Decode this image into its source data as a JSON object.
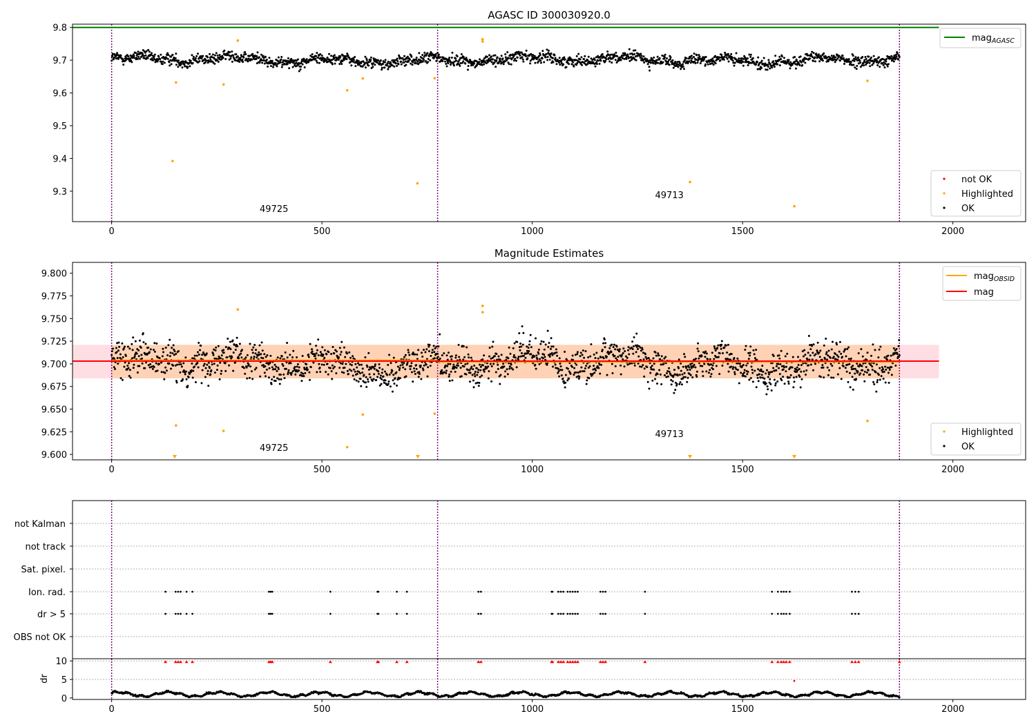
{
  "chart_data": [
    {
      "type": "scatter",
      "title": "AGASC ID 300030920.0",
      "xlim": [
        -93,
        2173
      ],
      "ylim": [
        9.207,
        9.81
      ],
      "xticks": [
        0,
        500,
        1000,
        1500,
        2000
      ],
      "yticks": [
        9.3,
        9.4,
        9.5,
        9.6,
        9.7,
        9.8
      ],
      "vlines": [
        0,
        775,
        1873
      ],
      "mag_agasc": 9.8,
      "obsid_labels": [
        {
          "x": 352,
          "y": 9.236,
          "text": "49725"
        },
        {
          "x": 1292,
          "y": 9.279,
          "text": "49713"
        }
      ],
      "series": [
        {
          "name": "not OK",
          "color": "#ff0000",
          "points": []
        },
        {
          "name": "Highlighted",
          "color": "#ffa500",
          "points": [
            [
              145,
              9.392
            ],
            [
              153,
              9.632
            ],
            [
              266,
              9.626
            ],
            [
              300,
              9.76
            ],
            [
              560,
              9.608
            ],
            [
              597,
              9.644
            ],
            [
              727,
              9.324
            ],
            [
              768,
              9.645
            ],
            [
              882,
              9.757
            ],
            [
              882,
              9.764
            ],
            [
              1375,
              9.328
            ],
            [
              1623,
              9.254
            ],
            [
              1797,
              9.637
            ]
          ]
        },
        {
          "name": "OK",
          "color": "#000000",
          "points": "jitter around 9.70 (sd 0.015) from x=0 to x=1873"
        }
      ],
      "legend": {
        "position": "lower right",
        "entries": [
          "not OK",
          "Highlighted",
          "OK"
        ]
      },
      "legend_top": {
        "position": "upper right",
        "entries": [
          {
            "text": "mag",
            "sub": "AGASC",
            "color": "#008000"
          }
        ]
      }
    },
    {
      "type": "scatter",
      "title": "Magnitude Estimates",
      "xlim": [
        -93,
        2173
      ],
      "ylim": [
        9.594,
        9.812
      ],
      "xticks": [
        0,
        500,
        1000,
        1500,
        2000
      ],
      "yticks": [
        9.6,
        9.625,
        9.65,
        9.675,
        9.7,
        9.725,
        9.75,
        9.775,
        9.8
      ],
      "vlines": [
        0,
        775,
        1873
      ],
      "mag": 9.703,
      "mag_band": [
        9.684,
        9.721
      ],
      "mag_obsid": [
        {
          "x0": 0,
          "x1": 775,
          "mag": 9.704,
          "band": [
            9.684,
            9.721
          ]
        },
        {
          "x0": 775,
          "x1": 1873,
          "mag": 9.702,
          "band": [
            9.684,
            9.721
          ]
        }
      ],
      "obsid_labels": [
        {
          "x": 352,
          "y": 9.604,
          "text": "49725"
        },
        {
          "x": 1292,
          "y": 9.619,
          "text": "49713"
        }
      ],
      "clipped_markers": [
        150,
        728,
        1375,
        1623
      ],
      "series": [
        {
          "name": "Highlighted",
          "color": "#ffa500",
          "points": [
            [
              153,
              9.632
            ],
            [
              266,
              9.626
            ],
            [
              300,
              9.76
            ],
            [
              560,
              9.608
            ],
            [
              597,
              9.644
            ],
            [
              768,
              9.645
            ],
            [
              882,
              9.757
            ],
            [
              882,
              9.764
            ],
            [
              1797,
              9.637
            ]
          ]
        },
        {
          "name": "OK",
          "color": "#000000",
          "points": "jitter around 9.70 (sd 0.017) from x=0 to x=1873"
        }
      ],
      "legend": {
        "position": "lower right",
        "entries": [
          "Highlighted",
          "OK"
        ]
      },
      "legend_top": {
        "position": "upper right",
        "entries": [
          {
            "text": "mag",
            "sub": "OBSID",
            "color": "#ffa500"
          },
          {
            "text": "mag",
            "sub": "",
            "color": "#ff0000"
          }
        ]
      }
    },
    {
      "type": "scatter",
      "title": "",
      "xlim": [
        -93,
        2173
      ],
      "xticks": [
        0,
        500,
        1000,
        1500,
        2000
      ],
      "vlines": [
        0,
        775,
        1873
      ],
      "flag_labels": [
        "not Kalman",
        "not track",
        "Sat. pixel.",
        "Ion. rad.",
        "dr > 5",
        "OBS not OK"
      ],
      "flag_points": {
        "Ion. rad.": [
          128,
          152,
          158,
          164,
          178,
          192,
          374,
          378,
          382,
          520,
          632,
          634,
          678,
          702,
          872,
          878,
          1046,
          1048,
          1062,
          1068,
          1074,
          1084,
          1090,
          1096,
          1102,
          1108,
          1162,
          1168,
          1174,
          1268,
          1570,
          1584,
          1592,
          1598,
          1604,
          1612,
          1760,
          1768,
          1776
        ],
        "dr > 5": [
          128,
          152,
          158,
          164,
          178,
          192,
          374,
          378,
          382,
          520,
          632,
          634,
          678,
          702,
          872,
          878,
          1046,
          1048,
          1062,
          1068,
          1074,
          1084,
          1090,
          1096,
          1102,
          1108,
          1162,
          1168,
          1174,
          1268,
          1570,
          1584,
          1592,
          1598,
          1604,
          1612,
          1760,
          1768,
          1776
        ]
      },
      "dr": {
        "ylabel": "dr",
        "ylim": [
          -0.4,
          10.6
        ],
        "yticks": [
          0,
          5,
          10
        ],
        "threshold": 5,
        "clipped_points": [
          128,
          152,
          158,
          164,
          178,
          192,
          374,
          378,
          382,
          520,
          632,
          634,
          678,
          702,
          872,
          878,
          1046,
          1048,
          1062,
          1068,
          1074,
          1084,
          1090,
          1096,
          1102,
          1108,
          1162,
          1168,
          1174,
          1268,
          1570,
          1584,
          1592,
          1598,
          1604,
          1612,
          1760,
          1768,
          1776,
          1873
        ],
        "red_points": [
          [
            1623,
            4.6
          ]
        ],
        "baseline": "values between 0.3 and 2.2 from x=0 to x=1873"
      }
    }
  ]
}
